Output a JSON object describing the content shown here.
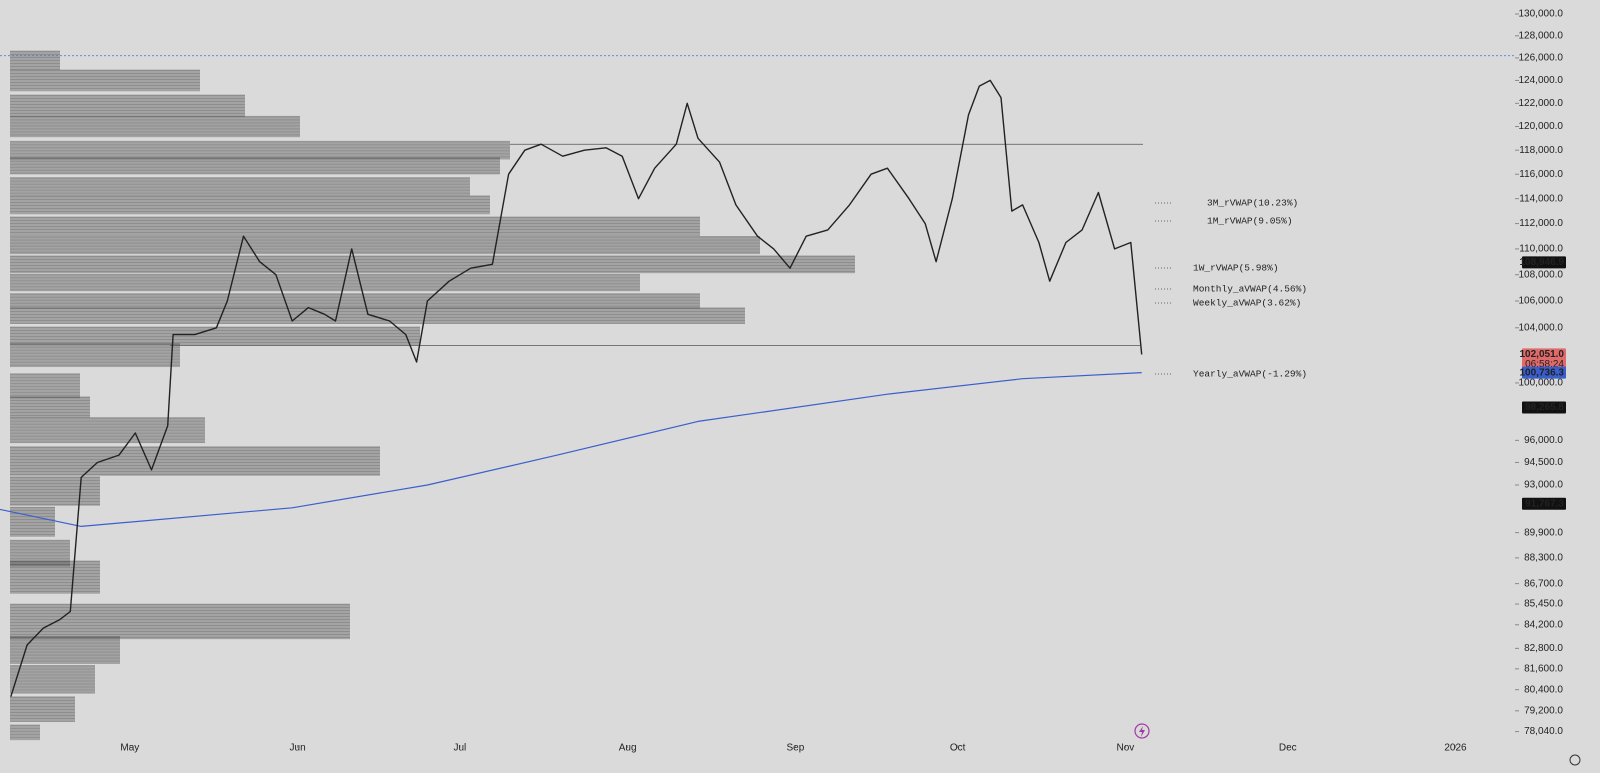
{
  "chart_data": {
    "type": "line",
    "yscale": "log",
    "xlim": [
      96,
      376
    ],
    "ylim": [
      77300,
      131300
    ],
    "xticks": [
      {
        "value": 120,
        "label": "May"
      },
      {
        "value": 151,
        "label": "Jun"
      },
      {
        "value": 181,
        "label": "Jul"
      },
      {
        "value": 212,
        "label": "Aug"
      },
      {
        "value": 243,
        "label": "Sep"
      },
      {
        "value": 273,
        "label": "Oct"
      },
      {
        "value": 304,
        "label": "Nov"
      },
      {
        "value": 334,
        "label": "Dec"
      },
      {
        "value": 365,
        "label": "2026"
      }
    ],
    "yticks": [
      {
        "value": 130000,
        "label": "130,000.0"
      },
      {
        "value": 128000,
        "label": "128,000.0"
      },
      {
        "value": 126000,
        "label": "126,000.0"
      },
      {
        "value": 124000,
        "label": "124,000.0"
      },
      {
        "value": 122000,
        "label": "122,000.0"
      },
      {
        "value": 120000,
        "label": "120,000.0"
      },
      {
        "value": 118000,
        "label": "118,000.0"
      },
      {
        "value": 116000,
        "label": "116,000.0"
      },
      {
        "value": 114000,
        "label": "114,000.0"
      },
      {
        "value": 112000,
        "label": "112,000.0"
      },
      {
        "value": 110000,
        "label": "110,000.0"
      },
      {
        "value": 108000,
        "label": "108,000.0"
      },
      {
        "value": 106000,
        "label": "106,000.0"
      },
      {
        "value": 104000,
        "label": "104,000.0"
      },
      {
        "value": 100000,
        "label": "100,000.0"
      },
      {
        "value": 96000,
        "label": "96,000.0"
      },
      {
        "value": 94500,
        "label": "94,500.0"
      },
      {
        "value": 93000,
        "label": "93,000.0"
      },
      {
        "value": 89900,
        "label": "89,900.0"
      },
      {
        "value": 88300,
        "label": "88,300.0"
      },
      {
        "value": 86700,
        "label": "86,700.0"
      },
      {
        "value": 85450,
        "label": "85,450.0"
      },
      {
        "value": 84200,
        "label": "84,200.0"
      },
      {
        "value": 82800,
        "label": "82,800.0"
      },
      {
        "value": 81600,
        "label": "81,600.0"
      },
      {
        "value": 80400,
        "label": "80,400.0"
      },
      {
        "value": 79200,
        "label": "79,200.0"
      },
      {
        "value": 78040,
        "label": "78,040.0"
      }
    ],
    "x": [
      98,
      101,
      104,
      107,
      109,
      111,
      114,
      118,
      121,
      124,
      127,
      128,
      132,
      136,
      138,
      141,
      144,
      147,
      150,
      153,
      156,
      158,
      161,
      164,
      168,
      171,
      173,
      175,
      179,
      183,
      187,
      190,
      193,
      196,
      200,
      204,
      208,
      211,
      214,
      217,
      221,
      223,
      225,
      229,
      232,
      236,
      239,
      242,
      245,
      249,
      253,
      257,
      260,
      264,
      267,
      269,
      272,
      275,
      277,
      279,
      281,
      283,
      285,
      288,
      290,
      293,
      296,
      299,
      302,
      305,
      307
    ],
    "values": [
      80000,
      83000,
      84000,
      84500,
      85000,
      93500,
      94500,
      95000,
      96500,
      94000,
      97000,
      103500,
      103500,
      104000,
      106000,
      111000,
      109000,
      108000,
      104500,
      105500,
      105000,
      104500,
      110000,
      105000,
      104500,
      103500,
      101500,
      106000,
      107500,
      108500,
      108800,
      116000,
      118000,
      118500,
      117500,
      118000,
      118200,
      117500,
      114000,
      116500,
      118500,
      122000,
      119000,
      117000,
      113500,
      111000,
      110000,
      108500,
      111000,
      111500,
      113500,
      116000,
      116500,
      114000,
      112000,
      109000,
      114000,
      121000,
      123500,
      124000,
      122500,
      113000,
      113500,
      110500,
      107500,
      110500,
      111500,
      114500,
      110000,
      110500,
      102051
    ],
    "color": "#222222",
    "vwap": {
      "x": [
        96,
        111,
        150,
        175,
        199,
        225,
        260,
        285,
        307
      ],
      "values": [
        91400,
        90300,
        91500,
        93000,
        95000,
        97300,
        99200,
        100300,
        100736.3
      ],
      "color": "#3a5fcd"
    },
    "hlines": [
      126200,
      118500,
      102700
    ],
    "indicators": [
      {
        "label": "3M_rVWAP(10.23%)",
        "color": "#3f6d4c"
      },
      {
        "label": "1M_rVWAP(9.05%)",
        "color": "#a3443c"
      },
      {
        "label": "1W_rVWAP(5.98%)",
        "color": "#333333"
      },
      {
        "label": "Monthly_aVWAP(4.56%)",
        "color": "#3b7d3b"
      },
      {
        "label": "Weekly_aVWAP(3.62%)",
        "color": "#444444"
      },
      {
        "label": "Yearly_aVWAP(-1.29%)",
        "color": "#3a5fcd"
      }
    ],
    "price_tags": [
      {
        "value": 108946.9,
        "label": "108,946.9",
        "color": "#111111"
      },
      {
        "value": 102051.0,
        "label": "102,051.0",
        "color": "#e06a6a"
      },
      {
        "value": 100736.3,
        "label": "100,736.3",
        "color": "#3a5fcd"
      },
      {
        "value": 98265.8,
        "label": "98,265.8",
        "color": "#111111"
      },
      {
        "value": 91767.3,
        "label": "91,767.3",
        "color": "#111111"
      }
    ],
    "countdown": "06:58:24",
    "profile": {
      "prices": [
        125800,
        124000,
        121800,
        120000,
        118000,
        116700,
        115000,
        113500,
        111800,
        110300,
        108800,
        107400,
        106000,
        104900,
        103400,
        102000,
        99800,
        98300,
        96700,
        94600,
        92600,
        90600,
        88600,
        87100,
        84400,
        82700,
        81000,
        79300,
        78000
      ],
      "volumes": [
        50,
        190,
        235,
        290,
        500,
        490,
        460,
        480,
        690,
        750,
        845,
        630,
        690,
        735,
        410,
        170,
        70,
        80,
        195,
        370,
        90,
        45,
        60,
        90,
        340,
        110,
        85,
        65,
        30
      ],
      "color": "#4a4a4a"
    }
  }
}
